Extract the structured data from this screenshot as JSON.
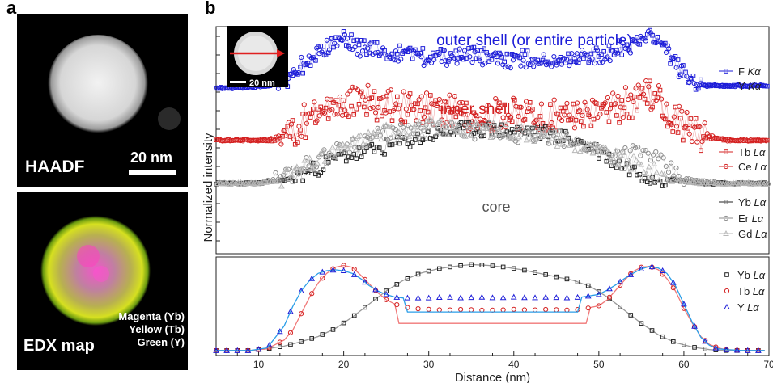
{
  "panel_a": {
    "letter": "a",
    "haadf": {
      "label": "HAADF",
      "scale_bar": "20 nm"
    },
    "edx": {
      "label": "EDX map",
      "legend": [
        "Magenta (Yb)",
        "Yellow (Tb)",
        "Green (Y)"
      ]
    }
  },
  "panel_b": {
    "letter": "b",
    "inset_scale": "20 nm"
  },
  "colors": {
    "blue": "#1d1dd8",
    "red": "#d42020",
    "dark": "#222222",
    "gray": "#8c8c8c",
    "light": "#b8b8b8",
    "lightblue": "#2a9ee8",
    "lightred": "#f07878"
  },
  "chart_data": [
    {
      "type": "scatter",
      "title": "",
      "ylabel": "Normalized intensity",
      "annotations": [
        "outer shell (or entire particle)",
        "inner shell",
        "core"
      ],
      "xlim": [
        5,
        70
      ],
      "series": [
        {
          "name": "F Kα",
          "role": "outer",
          "x": [
            5,
            8,
            11,
            13,
            15,
            16,
            17,
            18,
            19,
            20,
            21,
            22,
            25,
            30,
            35,
            40,
            45,
            50,
            53,
            55,
            56,
            57,
            58,
            59,
            60,
            61,
            62,
            63,
            65,
            70
          ],
          "y": [
            0.73,
            0.73,
            0.74,
            0.75,
            0.82,
            0.86,
            0.88,
            0.9,
            0.94,
            0.96,
            0.93,
            0.91,
            0.89,
            0.87,
            0.88,
            0.86,
            0.87,
            0.88,
            0.91,
            0.94,
            0.96,
            0.93,
            0.89,
            0.84,
            0.79,
            0.76,
            0.75,
            0.74,
            0.74,
            0.74
          ]
        },
        {
          "name": "Y Kα",
          "role": "outer",
          "x": [
            5,
            8,
            11,
            13,
            15,
            16,
            17,
            18,
            19,
            20,
            21,
            22,
            25,
            30,
            35,
            40,
            45,
            50,
            53,
            55,
            56,
            57,
            58,
            59,
            60,
            61,
            62,
            63,
            65,
            70
          ],
          "y": [
            0.73,
            0.73,
            0.74,
            0.76,
            0.83,
            0.87,
            0.89,
            0.91,
            0.93,
            0.95,
            0.92,
            0.9,
            0.88,
            0.86,
            0.87,
            0.85,
            0.86,
            0.87,
            0.9,
            0.93,
            0.95,
            0.92,
            0.88,
            0.83,
            0.78,
            0.75,
            0.74,
            0.74,
            0.74,
            0.74
          ]
        },
        {
          "name": "Tb Lα",
          "role": "inner",
          "x": [
            5,
            8,
            11,
            12,
            14,
            16,
            18,
            20,
            22,
            25,
            30,
            35,
            40,
            45,
            50,
            52,
            54,
            55,
            56,
            57,
            58,
            59,
            60,
            62,
            63,
            65,
            70
          ],
          "y": [
            0.5,
            0.5,
            0.5,
            0.5,
            0.54,
            0.58,
            0.62,
            0.64,
            0.66,
            0.65,
            0.63,
            0.6,
            0.61,
            0.6,
            0.61,
            0.63,
            0.66,
            0.69,
            0.7,
            0.67,
            0.63,
            0.58,
            0.55,
            0.52,
            0.51,
            0.5,
            0.5
          ]
        },
        {
          "name": "Ce Lα",
          "role": "inner",
          "x": [
            5,
            8,
            11,
            12,
            14,
            16,
            18,
            20,
            22,
            25,
            30,
            35,
            40,
            45,
            50,
            52,
            54,
            55,
            56,
            57,
            58,
            59,
            60,
            62,
            63,
            65,
            70
          ],
          "y": [
            0.5,
            0.5,
            0.5,
            0.51,
            0.56,
            0.6,
            0.64,
            0.67,
            0.68,
            0.66,
            0.64,
            0.62,
            0.62,
            0.61,
            0.62,
            0.65,
            0.69,
            0.72,
            0.71,
            0.68,
            0.64,
            0.6,
            0.56,
            0.53,
            0.52,
            0.5,
            0.5
          ]
        },
        {
          "name": "Yb Lα",
          "role": "core",
          "x": [
            5,
            10,
            12,
            14,
            16,
            18,
            20,
            22,
            25,
            30,
            35,
            40,
            42,
            45,
            48,
            50,
            52,
            54,
            56,
            58,
            60,
            62,
            65,
            70
          ],
          "y": [
            0.31,
            0.31,
            0.32,
            0.33,
            0.36,
            0.4,
            0.43,
            0.44,
            0.47,
            0.52,
            0.55,
            0.54,
            0.54,
            0.52,
            0.49,
            0.45,
            0.4,
            0.37,
            0.34,
            0.33,
            0.32,
            0.31,
            0.31,
            0.31
          ]
        },
        {
          "name": "Er Lα",
          "role": "core",
          "x": [
            5,
            10,
            12,
            14,
            16,
            18,
            20,
            22,
            25,
            30,
            35,
            40,
            42,
            45,
            48,
            50,
            52,
            54,
            56,
            58,
            60,
            62,
            65,
            70
          ],
          "y": [
            0.31,
            0.31,
            0.33,
            0.37,
            0.4,
            0.43,
            0.47,
            0.5,
            0.53,
            0.55,
            0.54,
            0.52,
            0.52,
            0.51,
            0.48,
            0.46,
            0.44,
            0.45,
            0.44,
            0.38,
            0.33,
            0.32,
            0.31,
            0.31
          ]
        },
        {
          "name": "Gd Lα",
          "role": "core",
          "x": [
            5,
            10,
            12,
            14,
            16,
            18,
            20,
            22,
            25,
            30,
            35,
            40,
            42,
            45,
            48,
            50,
            52,
            54,
            56,
            58,
            60,
            62,
            65,
            70
          ],
          "y": [
            0.31,
            0.31,
            0.32,
            0.35,
            0.39,
            0.43,
            0.46,
            0.5,
            0.54,
            0.56,
            0.55,
            0.54,
            0.53,
            0.51,
            0.47,
            0.45,
            0.42,
            0.4,
            0.37,
            0.34,
            0.32,
            0.31,
            0.31,
            0.31
          ]
        }
      ]
    },
    {
      "type": "scatter",
      "xlabel": "Distance (nm)",
      "xlim": [
        5,
        70
      ],
      "ylim": [
        0,
        1.05
      ],
      "x_ticks": [
        10,
        20,
        30,
        40,
        50,
        60,
        70
      ],
      "series": [
        {
          "name": "Yb Lα",
          "color": "dark",
          "x": [
            5,
            7,
            9,
            11,
            13,
            15,
            17,
            19,
            21,
            23,
            25,
            27,
            29,
            31,
            33,
            35,
            37,
            39,
            41,
            43,
            45,
            47,
            49,
            51,
            53,
            55,
            57,
            59,
            61,
            63,
            65,
            67,
            69
          ],
          "y": [
            0.02,
            0.02,
            0.02,
            0.04,
            0.07,
            0.12,
            0.18,
            0.27,
            0.4,
            0.55,
            0.7,
            0.82,
            0.9,
            0.95,
            0.98,
            1.0,
            0.99,
            0.97,
            0.94,
            0.9,
            0.86,
            0.82,
            0.75,
            0.63,
            0.48,
            0.33,
            0.2,
            0.11,
            0.06,
            0.03,
            0.02,
            0.02,
            0.02
          ]
        },
        {
          "name": "Tb Lα",
          "color": "red",
          "x": [
            5,
            7,
            9,
            11,
            13,
            14,
            15,
            16,
            17,
            18,
            19,
            20,
            21,
            22,
            23,
            24,
            25,
            26,
            27,
            28,
            30,
            32,
            34,
            36,
            38,
            40,
            42,
            44,
            46,
            48,
            50,
            51,
            52,
            53,
            54,
            55,
            56,
            57,
            58,
            59,
            60,
            61,
            62,
            63,
            64,
            65,
            67,
            69
          ],
          "y": [
            0.02,
            0.02,
            0.02,
            0.04,
            0.14,
            0.25,
            0.44,
            0.63,
            0.79,
            0.9,
            0.97,
            0.99,
            0.97,
            0.88,
            0.78,
            0.68,
            0.6,
            0.55,
            0.52,
            0.5,
            0.49,
            0.48,
            0.49,
            0.48,
            0.48,
            0.49,
            0.48,
            0.49,
            0.48,
            0.49,
            0.53,
            0.6,
            0.71,
            0.82,
            0.92,
            0.97,
            0.98,
            0.94,
            0.84,
            0.7,
            0.5,
            0.33,
            0.18,
            0.09,
            0.05,
            0.03,
            0.02,
            0.02
          ]
        },
        {
          "name": "Y Lα",
          "color": "blue",
          "x": [
            5,
            7,
            9,
            11,
            13,
            14,
            15,
            16,
            17,
            18,
            19,
            20,
            21,
            22,
            23,
            24,
            25,
            26,
            27,
            28,
            30,
            32,
            34,
            36,
            38,
            40,
            42,
            44,
            46,
            48,
            50,
            51,
            52,
            53,
            54,
            55,
            56,
            57,
            58,
            59,
            60,
            61,
            62,
            63,
            64,
            65,
            67,
            69
          ],
          "y": [
            0.02,
            0.02,
            0.02,
            0.05,
            0.3,
            0.52,
            0.7,
            0.82,
            0.9,
            0.93,
            0.94,
            0.93,
            0.9,
            0.84,
            0.76,
            0.7,
            0.66,
            0.63,
            0.62,
            0.62,
            0.62,
            0.63,
            0.62,
            0.63,
            0.62,
            0.63,
            0.62,
            0.63,
            0.62,
            0.63,
            0.66,
            0.71,
            0.77,
            0.84,
            0.9,
            0.95,
            0.98,
            0.96,
            0.9,
            0.76,
            0.55,
            0.34,
            0.17,
            0.08,
            0.04,
            0.03,
            0.02,
            0.02
          ]
        }
      ]
    }
  ]
}
